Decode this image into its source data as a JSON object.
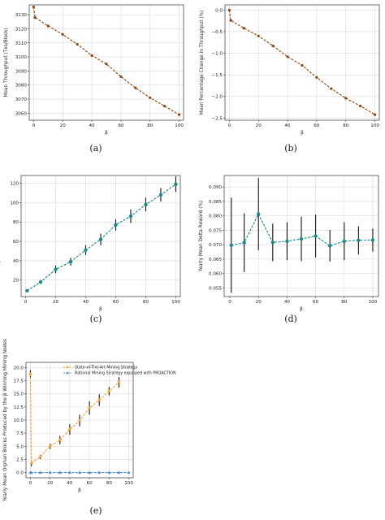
{
  "chart_data": [
    {
      "id": "a",
      "caption": "(a)",
      "type": "line",
      "xlabel": "β",
      "ylabel": "Mean Throughput (Txs/Block)",
      "xlim": [
        -3,
        103
      ],
      "ylim": [
        3055,
        3137
      ],
      "xticks": [
        0,
        20,
        40,
        60,
        80,
        100
      ],
      "yticks": [
        3060,
        3070,
        3080,
        3090,
        3100,
        3110,
        3120,
        3130
      ],
      "grid": true,
      "color": "#8b4513",
      "series": [
        {
          "x": [
            0,
            1,
            10,
            20,
            30,
            40,
            50,
            60,
            70,
            80,
            90,
            100
          ],
          "y": [
            3135.5,
            3128,
            3122,
            3116,
            3109,
            3101,
            3095,
            3086,
            3078,
            3071,
            3065,
            3059
          ]
        }
      ]
    },
    {
      "id": "b",
      "caption": "(b)",
      "type": "line",
      "xlabel": "β",
      "ylabel": "Mean Percentage Change in Throughput (%)",
      "xlim": [
        -3,
        103
      ],
      "ylim": [
        -2.55,
        0.12
      ],
      "xticks": [
        0,
        20,
        40,
        60,
        80,
        100
      ],
      "yticks": [
        0.0,
        -0.5,
        -1.0,
        -1.5,
        -2.0,
        -2.5
      ],
      "ytick_labels": [
        "0.0",
        "−0.5",
        "−1.0",
        "−1.5",
        "−2.0",
        "−2.5"
      ],
      "grid": true,
      "color": "#8b4513",
      "series": [
        {
          "x": [
            0,
            1,
            10,
            20,
            30,
            40,
            50,
            60,
            70,
            80,
            90,
            100
          ],
          "y": [
            0.0,
            -0.24,
            -0.42,
            -0.6,
            -0.83,
            -1.08,
            -1.28,
            -1.56,
            -1.82,
            -2.04,
            -2.22,
            -2.42
          ]
        }
      ]
    },
    {
      "id": "c",
      "caption": "(c)",
      "type": "line",
      "xlabel": "β",
      "ylabel": "Yearly Mean Delta Reward (BTC)",
      "xlim": [
        -3,
        103
      ],
      "ylim": [
        3,
        128
      ],
      "xticks": [
        0,
        20,
        40,
        60,
        80,
        100
      ],
      "yticks": [
        20,
        40,
        60,
        80,
        100,
        120
      ],
      "grid": true,
      "color": "#1a8a8a",
      "series": [
        {
          "x": [
            1,
            10,
            20,
            30,
            40,
            50,
            60,
            70,
            80,
            90,
            100
          ],
          "y": [
            9,
            18,
            31,
            39,
            51,
            62,
            77,
            86,
            98,
            108,
            119
          ],
          "err": [
            1,
            2,
            4,
            4,
            5,
            6,
            6,
            7,
            7,
            7,
            8
          ]
        }
      ]
    },
    {
      "id": "d",
      "caption": "(d)",
      "type": "line",
      "xlabel": "β",
      "ylabel": "Yearly Mean Delta Reward (%)",
      "xlim": [
        -4,
        104
      ],
      "ylim": [
        0.052,
        0.094
      ],
      "xticks": [
        0,
        20,
        40,
        60,
        80,
        100
      ],
      "yticks": [
        0.055,
        0.06,
        0.065,
        0.07,
        0.075,
        0.08,
        0.085,
        0.09
      ],
      "ytick_labels": [
        "0.055",
        "0.060",
        "0.065",
        "0.070",
        "0.075",
        "0.080",
        "0.085",
        "0.090"
      ],
      "grid": true,
      "color": "#1a8a8a",
      "series": [
        {
          "x": [
            1,
            10,
            20,
            30,
            40,
            50,
            60,
            70,
            80,
            90,
            100
          ],
          "y": [
            0.0698,
            0.0707,
            0.0806,
            0.0708,
            0.0712,
            0.072,
            0.073,
            0.0696,
            0.0712,
            0.0715,
            0.0716
          ],
          "err": [
            0.0165,
            0.0102,
            0.0125,
            0.0065,
            0.0066,
            0.0077,
            0.0074,
            0.0055,
            0.0066,
            0.0049,
            0.004
          ]
        }
      ]
    },
    {
      "id": "e",
      "caption": "(e)",
      "type": "line",
      "xlabel": "β",
      "ylabel": "Yearly Mean Orphan Blocks Produced by the β Winning Mining Nodes",
      "xlim": [
        -4.5,
        104.5
      ],
      "ylim": [
        -1,
        21
      ],
      "xticks": [
        0,
        20,
        40,
        60,
        80,
        100
      ],
      "yticks": [
        0,
        2.5,
        5,
        7.5,
        10,
        12.5,
        15,
        17.5,
        20
      ],
      "ytick_labels": [
        "0.0",
        "2.5",
        "5.0",
        "7.5",
        "10.0",
        "12.5",
        "15.0",
        "17.5",
        "20.0"
      ],
      "grid": true,
      "legend_position": "top-right",
      "series": [
        {
          "name": "State-of-The-Art Mining Strategy",
          "color": "#f5a030",
          "marker": "star",
          "x": [
            0,
            1,
            10,
            20,
            30,
            40,
            50,
            60,
            70,
            80,
            90
          ],
          "y": [
            18.8,
            1.7,
            3.0,
            5.0,
            6.2,
            8.2,
            9.9,
            12.3,
            13.8,
            15.5,
            17.2
          ],
          "err": [
            0.7,
            0.5,
            0.4,
            0.5,
            0.8,
            1.0,
            1.1,
            1.3,
            1.1,
            0.8,
            1.0
          ]
        },
        {
          "name": "Rational Mining Strategy equipped with PROACTION",
          "color": "#4a90d9",
          "marker": "triangle",
          "x": [
            0,
            1,
            10,
            20,
            30,
            40,
            50,
            60,
            70,
            80,
            90,
            100
          ],
          "y": [
            0,
            0,
            0,
            0,
            0,
            0,
            0,
            0,
            0,
            0,
            0,
            0
          ]
        }
      ]
    }
  ]
}
